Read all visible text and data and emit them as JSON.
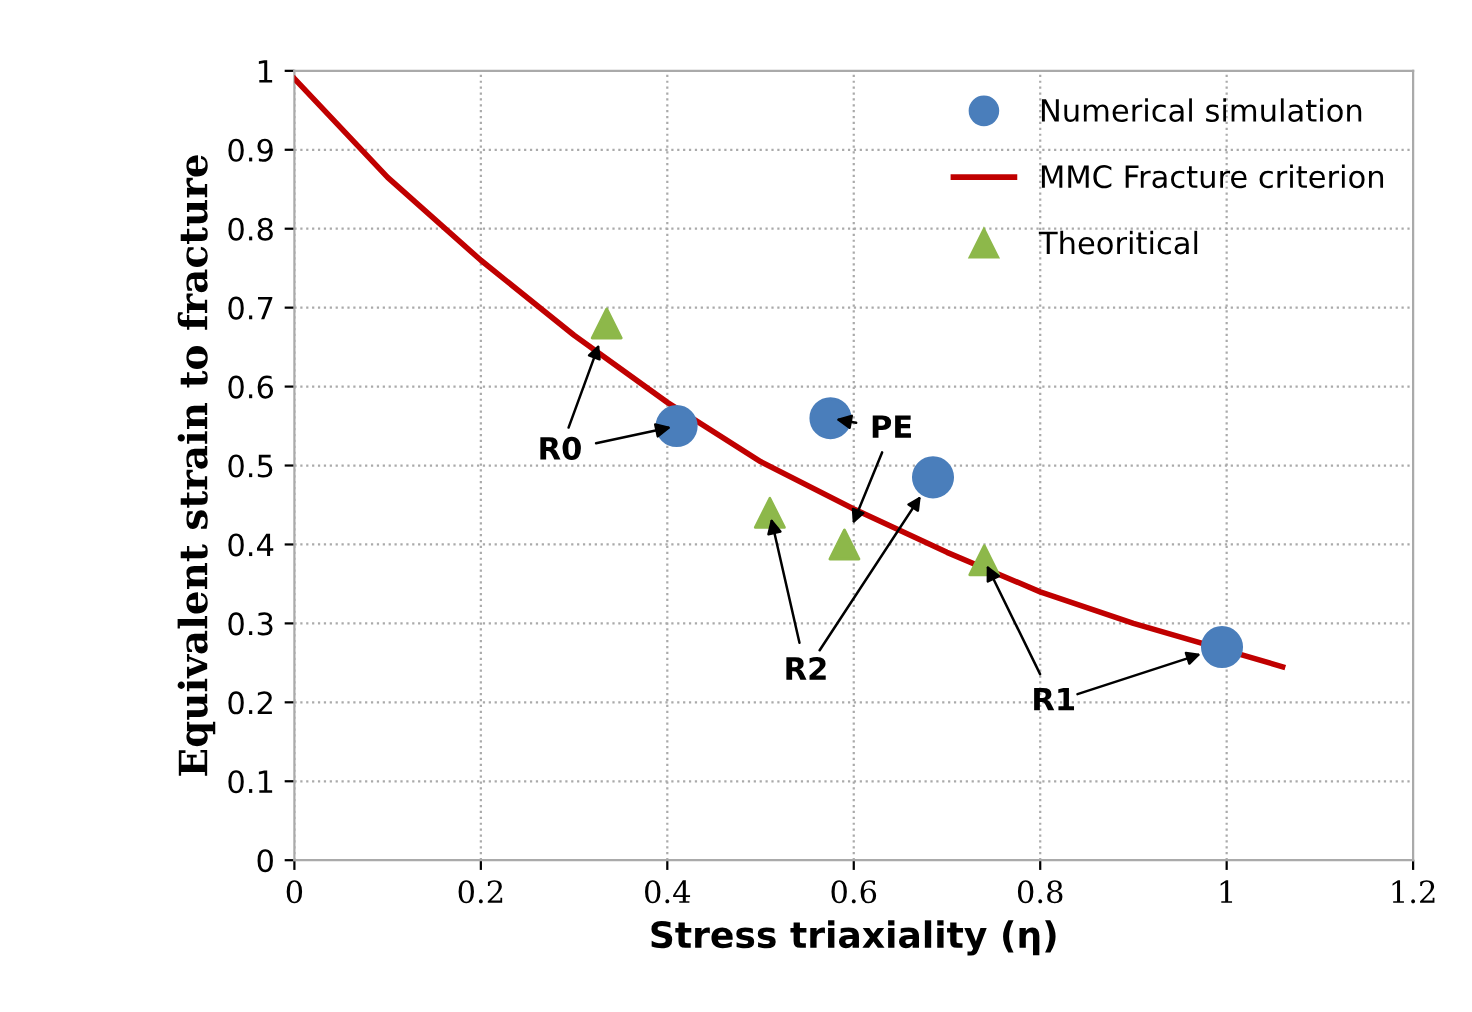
{
  "chart_data": {
    "type": "scatter",
    "xlabel": "Stress triaxiality (η)",
    "ylabel": "Equivalent strain to fracture",
    "xlim": [
      0,
      1.2
    ],
    "ylim": [
      0,
      1
    ],
    "xticks": [
      0,
      0.2,
      0.4,
      0.6,
      0.8,
      1,
      1.2
    ],
    "yticks": [
      0,
      0.1,
      0.2,
      0.3,
      0.4,
      0.5,
      0.6,
      0.7,
      0.8,
      0.9,
      1
    ],
    "grid": true,
    "legend": "top right",
    "series": [
      {
        "name": "Numerical simulation",
        "type": "scatter",
        "marker": "circle",
        "color": "#4a7ebb",
        "x": [
          0.41,
          0.575,
          0.685,
          0.995
        ],
        "values": [
          0.55,
          0.56,
          0.485,
          0.27
        ]
      },
      {
        "name": "MMC Fracture criterion",
        "type": "line",
        "marker": "none",
        "line_style": "solid",
        "color": "#c00000",
        "x": [
          0,
          0.1,
          0.2,
          0.3,
          0.4,
          0.5,
          0.6,
          0.7,
          0.8,
          0.9,
          1.06
        ],
        "values": [
          0.99,
          0.865,
          0.76,
          0.665,
          0.58,
          0.505,
          0.445,
          0.39,
          0.34,
          0.3,
          0.245
        ]
      },
      {
        "name": "Theoritical",
        "type": "scatter",
        "marker": "triangle",
        "color": "#8db84a",
        "x": [
          0.335,
          0.51,
          0.59,
          0.74
        ],
        "values": [
          0.68,
          0.44,
          0.4,
          0.38
        ]
      }
    ],
    "annotations": [
      {
        "text": "R0",
        "x": 0.41,
        "y": 0.55
      },
      {
        "text": "PE",
        "x": 0.575,
        "y": 0.56
      },
      {
        "text": "R2",
        "x": 0.51,
        "y": 0.44
      },
      {
        "text": "R1",
        "x": 0.74,
        "y": 0.38
      }
    ]
  }
}
